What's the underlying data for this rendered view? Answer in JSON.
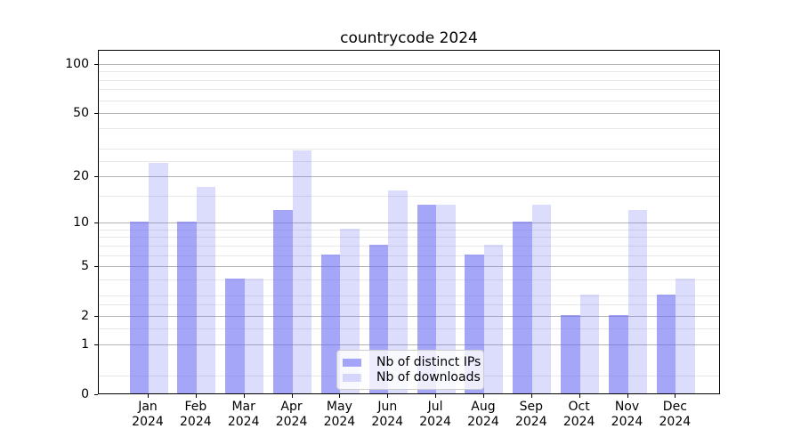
{
  "title": "countrycode 2024",
  "chart_data": {
    "type": "bar",
    "title": "countrycode 2024",
    "categories": [
      "Jan 2024",
      "Feb 2024",
      "Mar 2024",
      "Apr 2024",
      "May 2024",
      "Jun 2024",
      "Jul 2024",
      "Aug 2024",
      "Sep 2024",
      "Oct 2024",
      "Nov 2024",
      "Dec 2024"
    ],
    "x_tick_months": [
      "Jan",
      "Feb",
      "Mar",
      "Apr",
      "May",
      "Jun",
      "Jul",
      "Aug",
      "Sep",
      "Oct",
      "Nov",
      "Dec"
    ],
    "x_tick_year": "2024",
    "series": [
      {
        "name": "Nb of distinct IPs",
        "values": [
          10,
          10,
          4,
          12,
          6,
          7,
          13,
          6,
          10,
          2,
          2,
          3
        ],
        "color_hex": "#6b6bf3",
        "alpha": 0.6,
        "css_color": "rgba(107,107,243,0.60)"
      },
      {
        "name": "Nb of downloads",
        "values": [
          24,
          17,
          4,
          29,
          9,
          16,
          13,
          7,
          13,
          3,
          12,
          4
        ],
        "color_hex": "#6b6bf3",
        "alpha": 0.24,
        "css_color": "rgba(107,107,243,0.24)"
      }
    ],
    "y_axis": {
      "scale": "log10(1+v)",
      "tick_values": [
        0,
        1,
        2,
        5,
        10,
        20,
        50,
        100
      ],
      "tick_labels": [
        "0",
        "1",
        "2",
        "5",
        "10",
        "20",
        "50",
        "100"
      ],
      "minor_tick_values": [
        0.3,
        1.5,
        2.5,
        3,
        4,
        6,
        7,
        8,
        9,
        15,
        25,
        30,
        40,
        60,
        70,
        80,
        90
      ],
      "ylim": [
        0,
        120
      ]
    },
    "grid": {
      "horizontal_only": true,
      "major_color": "#b3b3b3",
      "minor_color": "#e8e8e8"
    },
    "legend": {
      "position": "lower-center",
      "items": [
        "Nb of distinct IPs",
        "Nb of downloads"
      ]
    }
  }
}
